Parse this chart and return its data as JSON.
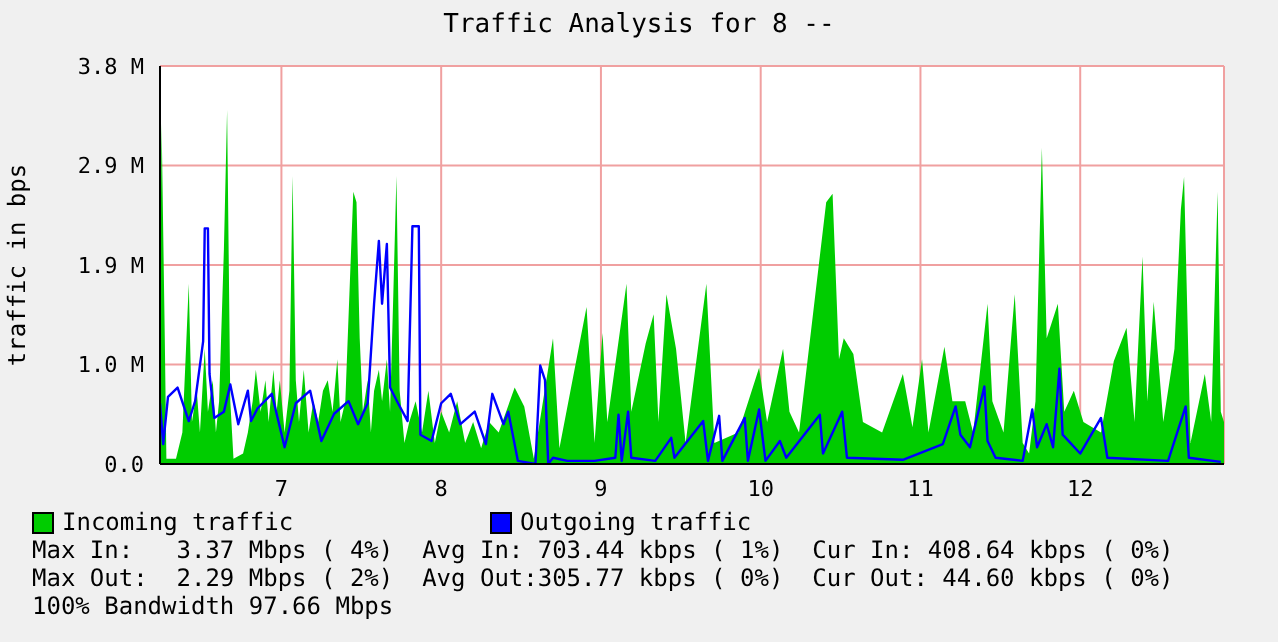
{
  "chart_data": {
    "type": "area",
    "title": "Traffic Analysis for 8 --",
    "ylabel": "traffic in bps",
    "xlim": [
      6.24,
      12.9
    ],
    "xticks": [
      7,
      8,
      9,
      10,
      11,
      12
    ],
    "ylim": [
      0,
      3.8
    ],
    "yticks": [
      {
        "value": 0,
        "label": "0.0"
      },
      {
        "value": 0.95,
        "label": "1.0 M"
      },
      {
        "value": 1.9,
        "label": "1.9 M"
      },
      {
        "value": 2.85,
        "label": "2.9 M"
      },
      {
        "value": 3.8,
        "label": "3.8 M"
      }
    ],
    "grid": true,
    "legend": "bottom",
    "series": [
      {
        "name": "Incoming traffic",
        "color": "#00cc00",
        "x": [
          6.24,
          6.25,
          6.27,
          6.28,
          6.34,
          6.38,
          6.4,
          6.42,
          6.44,
          6.47,
          6.49,
          6.52,
          6.54,
          6.57,
          6.59,
          6.61,
          6.64,
          6.66,
          6.68,
          6.7,
          6.76,
          6.79,
          6.82,
          6.84,
          6.87,
          6.9,
          6.92,
          6.95,
          6.97,
          6.99,
          7.02,
          7.05,
          7.07,
          7.09,
          7.11,
          7.14,
          7.17,
          7.2,
          7.23,
          7.26,
          7.29,
          7.32,
          7.35,
          7.37,
          7.4,
          7.45,
          7.47,
          7.49,
          7.51,
          7.54,
          7.56,
          7.58,
          7.61,
          7.63,
          7.66,
          7.68,
          7.7,
          7.72,
          7.74,
          7.77,
          7.8,
          7.84,
          7.88,
          7.92,
          7.96,
          8.0,
          8.05,
          8.1,
          8.15,
          8.2,
          8.25,
          8.3,
          8.36,
          8.46,
          8.52,
          8.58,
          8.7,
          8.74,
          8.91,
          8.96,
          9.01,
          9.04,
          9.16,
          9.19,
          9.28,
          9.33,
          9.36,
          9.41,
          9.47,
          9.53,
          9.66,
          9.71,
          9.86,
          9.99,
          10.04,
          10.14,
          10.18,
          10.24,
          10.41,
          10.45,
          10.49,
          10.52,
          10.58,
          10.64,
          10.76,
          10.89,
          10.95,
          11.01,
          11.05,
          11.15,
          11.2,
          11.28,
          11.33,
          11.42,
          11.45,
          11.52,
          11.59,
          11.64,
          11.68,
          11.72,
          11.76,
          11.79,
          11.86,
          11.9,
          11.96,
          12.02,
          12.13,
          12.21,
          12.29,
          12.34,
          12.39,
          12.42,
          12.46,
          12.52,
          12.59,
          12.63,
          12.65,
          12.69,
          12.78,
          12.82,
          12.86,
          12.88,
          12.9
        ],
        "values": [
          1.3,
          3.25,
          1.2,
          0.05,
          0.05,
          0.3,
          1.0,
          1.72,
          0.4,
          0.7,
          0.3,
          1.1,
          0.5,
          0.8,
          0.3,
          0.6,
          2.05,
          3.38,
          0.6,
          0.05,
          0.1,
          0.3,
          0.6,
          0.9,
          0.5,
          0.8,
          0.4,
          0.9,
          0.5,
          0.8,
          0.3,
          0.7,
          2.75,
          0.8,
          0.4,
          0.9,
          0.3,
          0.6,
          0.4,
          0.7,
          0.8,
          0.5,
          1.0,
          0.4,
          0.6,
          2.6,
          2.5,
          1.2,
          0.5,
          0.8,
          0.3,
          0.7,
          0.9,
          0.6,
          1.0,
          0.5,
          1.6,
          2.75,
          0.7,
          0.2,
          0.4,
          0.6,
          0.3,
          0.7,
          0.2,
          0.5,
          0.3,
          0.6,
          0.2,
          0.4,
          0.15,
          0.4,
          0.3,
          0.73,
          0.55,
          0.05,
          1.2,
          0.15,
          1.5,
          0.2,
          1.25,
          0.4,
          1.72,
          0.5,
          1.15,
          1.43,
          0.4,
          1.62,
          1.1,
          0.2,
          1.72,
          0.2,
          0.3,
          0.92,
          0.4,
          1.1,
          0.5,
          0.3,
          2.5,
          2.58,
          1.0,
          1.2,
          1.05,
          0.4,
          0.3,
          0.86,
          0.35,
          1.0,
          0.3,
          1.12,
          0.6,
          0.6,
          0.3,
          1.53,
          0.6,
          0.3,
          1.62,
          0.2,
          0.1,
          0.6,
          3.02,
          1.2,
          1.53,
          0.5,
          0.7,
          0.4,
          0.3,
          0.98,
          1.3,
          0.4,
          1.98,
          0.6,
          1.55,
          0.4,
          1.1,
          2.43,
          2.74,
          0.2,
          0.86,
          0.4,
          2.6,
          0.5,
          0.4
        ]
      },
      {
        "name": "Outgoing traffic",
        "type": "line",
        "color": "#0000ff",
        "x": [
          6.24,
          6.26,
          6.29,
          6.35,
          6.42,
          6.46,
          6.51,
          6.52,
          6.54,
          6.55,
          6.58,
          6.64,
          6.68,
          6.73,
          6.79,
          6.81,
          6.85,
          6.94,
          7.02,
          7.09,
          7.18,
          7.25,
          7.33,
          7.42,
          7.48,
          7.54,
          7.58,
          7.61,
          7.63,
          7.66,
          7.68,
          7.73,
          7.79,
          7.82,
          7.86,
          7.87,
          7.94,
          8.0,
          8.06,
          8.12,
          8.21,
          8.28,
          8.32,
          8.39,
          8.42,
          8.48,
          8.59,
          8.62,
          8.65,
          8.67,
          8.7,
          8.79,
          8.96,
          9.09,
          9.11,
          9.13,
          9.17,
          9.19,
          9.34,
          9.44,
          9.46,
          9.64,
          9.67,
          9.74,
          9.76,
          9.9,
          9.92,
          9.99,
          10.03,
          10.12,
          10.16,
          10.37,
          10.39,
          10.51,
          10.54,
          10.89,
          11.14,
          11.22,
          11.25,
          11.31,
          11.4,
          11.42,
          11.47,
          11.64,
          11.7,
          11.73,
          11.79,
          11.83,
          11.87,
          11.89,
          12.0,
          12.13,
          12.17,
          12.55,
          12.66,
          12.68,
          12.88
        ],
        "values": [
          0.58,
          0.19,
          0.64,
          0.73,
          0.41,
          0.6,
          1.17,
          2.25,
          2.25,
          0.86,
          0.44,
          0.5,
          0.76,
          0.38,
          0.7,
          0.41,
          0.53,
          0.67,
          0.16,
          0.58,
          0.7,
          0.22,
          0.48,
          0.6,
          0.38,
          0.58,
          1.53,
          2.13,
          1.53,
          2.1,
          0.73,
          0.58,
          0.41,
          2.27,
          2.27,
          0.28,
          0.22,
          0.58,
          0.67,
          0.38,
          0.5,
          0.19,
          0.67,
          0.38,
          0.5,
          0.03,
          0.0,
          0.94,
          0.8,
          0.0,
          0.06,
          0.03,
          0.03,
          0.06,
          0.47,
          0.03,
          0.5,
          0.06,
          0.03,
          0.25,
          0.06,
          0.41,
          0.03,
          0.46,
          0.03,
          0.44,
          0.03,
          0.52,
          0.03,
          0.22,
          0.06,
          0.47,
          0.1,
          0.5,
          0.06,
          0.04,
          0.19,
          0.55,
          0.28,
          0.16,
          0.74,
          0.22,
          0.06,
          0.03,
          0.52,
          0.16,
          0.38,
          0.16,
          0.91,
          0.28,
          0.1,
          0.44,
          0.06,
          0.03,
          0.55,
          0.06,
          0.02
        ]
      }
    ],
    "annotations": [
      "Max In:   3.37 Mbps ( 4%)  Avg In: 703.44 kbps ( 1%)  Cur In: 408.64 kbps ( 0%)",
      "Max Out:  2.29 Mbps ( 2%)  Avg Out:305.77 kbps ( 0%)  Cur Out: 44.60 kbps ( 0%)",
      "100% Bandwidth 97.66 Mbps"
    ]
  }
}
